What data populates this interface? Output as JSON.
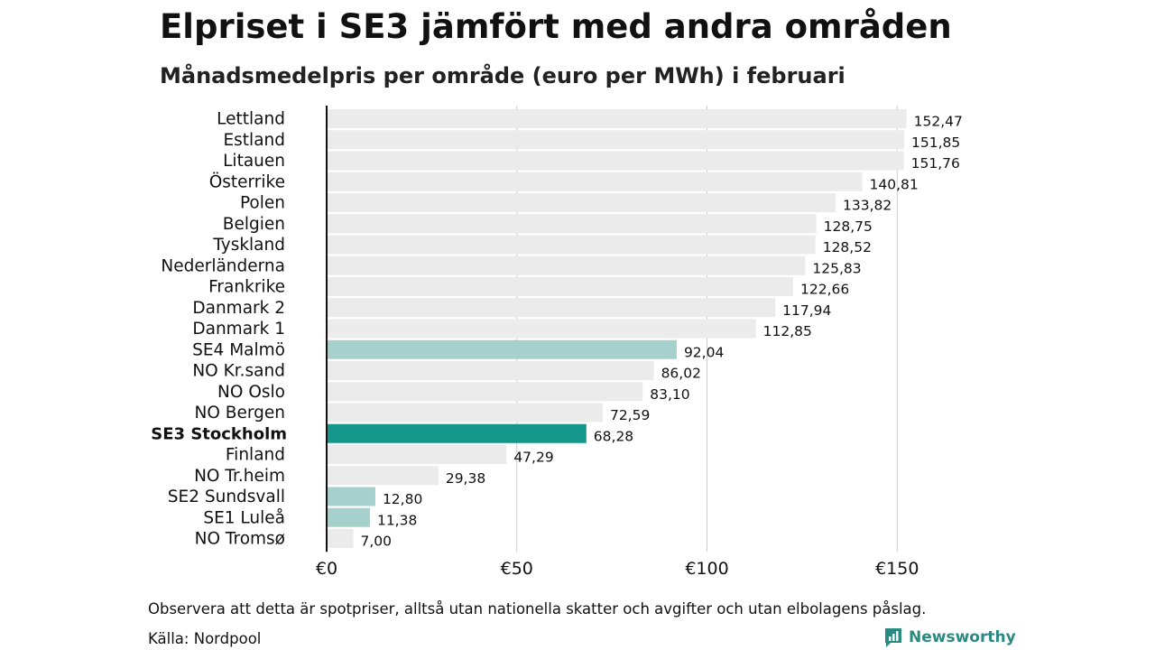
{
  "page": {
    "title": "Elpriset i SE3 jämfört med andra områden",
    "subtitle": "Månadsmedelpris per område (euro per MWh) i februari",
    "footnote": "Observera att detta är spotpriser, alltså utan nationella skatter och avgifter och utan elbolagens påslag.",
    "source": "Källa: Nordpool",
    "brand": "Newsworthy"
  },
  "colors": {
    "default_bar": "#ebebeb",
    "sweden_bar": "#a6d0cb",
    "highlight_bar": "#14968a",
    "grid": "#cccccc",
    "axis": "#111111",
    "brand": "#2a8a82"
  },
  "chart_data": {
    "type": "bar",
    "orientation": "horizontal",
    "title": "Elpriset i SE3 jämfört med andra områden",
    "subtitle": "Månadsmedelpris per område (euro per MWh) i februari",
    "xlim": [
      0,
      170
    ],
    "x_ticks": [
      0,
      50,
      100,
      150
    ],
    "x_tick_labels": [
      "€0",
      "€50",
      "€100",
      "€150"
    ],
    "grid": true,
    "categories": [
      "Lettland",
      "Estland",
      "Litauen",
      "Österrike",
      "Polen",
      "Belgien",
      "Tyskland",
      "Nederländerna",
      "Frankrike",
      "Danmark 2",
      "Danmark 1",
      "SE4 Malmö",
      "NO Kr.sand",
      "NO Oslo",
      "NO Bergen",
      "SE3 Stockholm",
      "Finland",
      "NO Tr.heim",
      "SE2 Sundsvall",
      "SE1 Luleå",
      "NO Tromsø"
    ],
    "values": [
      152.47,
      151.85,
      151.76,
      140.81,
      133.82,
      128.75,
      128.52,
      125.83,
      122.66,
      117.94,
      112.85,
      92.04,
      86.02,
      83.1,
      72.59,
      68.28,
      47.29,
      29.38,
      12.8,
      11.38,
      7.0
    ],
    "value_labels": [
      "152,47",
      "151,85",
      "151,76",
      "140,81",
      "133,82",
      "128,75",
      "128,52",
      "125,83",
      "122,66",
      "117,94",
      "112,85",
      "92,04",
      "86,02",
      "83,10",
      "72,59",
      "68,28",
      "47,29",
      "29,38",
      "12,80",
      "11,38",
      "7,00"
    ],
    "highlight": [
      "default",
      "default",
      "default",
      "default",
      "default",
      "default",
      "default",
      "default",
      "default",
      "default",
      "default",
      "sweden",
      "default",
      "default",
      "default",
      "focus",
      "default",
      "default",
      "sweden",
      "sweden",
      "default"
    ]
  }
}
